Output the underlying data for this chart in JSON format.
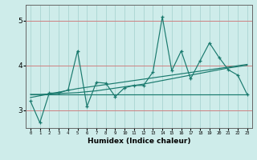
{
  "xlabel": "Humidex (Indice chaleur)",
  "background_color": "#ceecea",
  "grid_color": "#afd8d5",
  "red_line_color": "#d08080",
  "line_color": "#1a7a6e",
  "x_values": [
    0,
    1,
    2,
    3,
    4,
    5,
    6,
    7,
    8,
    9,
    10,
    11,
    12,
    13,
    14,
    15,
    16,
    17,
    18,
    19,
    20,
    21,
    22,
    23
  ],
  "y_main": [
    3.2,
    2.72,
    3.38,
    3.38,
    3.45,
    4.32,
    3.08,
    3.62,
    3.6,
    3.3,
    3.5,
    3.55,
    3.55,
    3.85,
    5.08,
    3.88,
    4.32,
    3.7,
    4.1,
    4.5,
    4.18,
    3.9,
    3.78,
    3.35
  ],
  "y_trend1": [
    3.35,
    3.35,
    3.36,
    3.37,
    3.38,
    3.39,
    3.41,
    3.43,
    3.46,
    3.49,
    3.52,
    3.55,
    3.58,
    3.62,
    3.66,
    3.7,
    3.74,
    3.78,
    3.82,
    3.86,
    3.9,
    3.94,
    3.97,
    4.0
  ],
  "y_trend2": [
    3.28,
    3.32,
    3.36,
    3.4,
    3.44,
    3.48,
    3.51,
    3.54,
    3.57,
    3.6,
    3.63,
    3.66,
    3.69,
    3.72,
    3.75,
    3.78,
    3.81,
    3.84,
    3.87,
    3.9,
    3.93,
    3.96,
    3.99,
    4.02
  ],
  "y_trend3": [
    3.35,
    3.35,
    3.35,
    3.35,
    3.35,
    3.35,
    3.35,
    3.35,
    3.35,
    3.35,
    3.35,
    3.35,
    3.35,
    3.35,
    3.35,
    3.35,
    3.35,
    3.35,
    3.35,
    3.35,
    3.35,
    3.35,
    3.35,
    3.35
  ],
  "ylim": [
    2.6,
    5.35
  ],
  "yticks": [
    3,
    4,
    5
  ],
  "xlim": [
    -0.5,
    23.5
  ]
}
